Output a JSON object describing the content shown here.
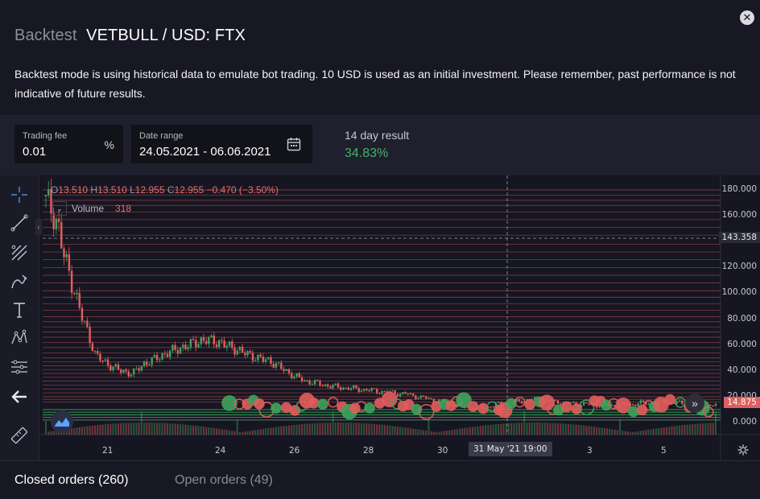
{
  "header": {
    "title_prefix": "Backtest",
    "title_pair": "VETBULL / USD: FTX",
    "description": "Backtest mode is using historical data to emulate bot trading. 10 USD is used as an initial investment. Please remember, past performance is not indicative of future results."
  },
  "params": {
    "trading_fee": {
      "label": "Trading fee",
      "value": "0.01",
      "suffix": "%"
    },
    "date_range": {
      "label": "Date range",
      "value": "24.05.2021 - 06.06.2021"
    },
    "result": {
      "label": "14 day result",
      "value": "34.83%"
    }
  },
  "toolbar": {
    "tools": [
      "crosshair-icon",
      "trend-line-icon",
      "pitchfork-icon",
      "brush-icon",
      "text-icon",
      "pattern-icon",
      "measure-icon",
      "back-arrow-icon",
      "ruler-icon"
    ]
  },
  "chart": {
    "legend": {
      "o_key": "O",
      "o": "13.510",
      "h_key": "H",
      "h": "13.510",
      "l_key": "L",
      "l": "12.955",
      "c_key": "C",
      "c": "12.955",
      "change": "−0.470 (−3.50%)"
    },
    "volume": {
      "label": "Volume",
      "value": "318"
    },
    "crosshair_price": "143.358",
    "last_price": "14.875",
    "crosshair_time": "31 May '21   19:00",
    "colors": {
      "up": "#3fa35d",
      "down": "#e25d5d",
      "grid_line": "#c24c4c"
    }
  },
  "chart_data": {
    "type": "candlestick",
    "y_ticks": [
      "180.000",
      "160.000",
      "140.000",
      "120.000",
      "100.000",
      "80.000",
      "60.000",
      "40.000",
      "20.000",
      "0.000"
    ],
    "x_ticks": [
      "21",
      "24",
      "26",
      "28",
      "30",
      "3",
      "5"
    ],
    "ylim": [
      0,
      185
    ],
    "grid_order_levels": [
      180,
      176,
      172,
      168,
      163,
      157,
      151,
      145,
      138,
      132,
      126,
      120,
      114,
      108,
      102,
      97,
      92,
      87,
      82,
      78,
      74,
      70,
      66,
      62,
      58,
      54,
      50,
      47,
      44,
      41,
      38,
      35,
      32,
      29,
      26,
      23,
      20,
      18,
      16
    ],
    "candles_approx_close": [
      175,
      150,
      110,
      80,
      52,
      45,
      40,
      38,
      46,
      50,
      55,
      58,
      62,
      64,
      62,
      58,
      54,
      50,
      48,
      42,
      36,
      32,
      30,
      28,
      27,
      26,
      25,
      24,
      23,
      22,
      20,
      18,
      16,
      14,
      12,
      11,
      13,
      15,
      16,
      18,
      17,
      16,
      15,
      14,
      14,
      13,
      13,
      14,
      15,
      15,
      16,
      15,
      14,
      13,
      13
    ]
  },
  "tabs": [
    {
      "label": "Closed orders (260)"
    },
    {
      "label": "Open orders (49)"
    }
  ]
}
